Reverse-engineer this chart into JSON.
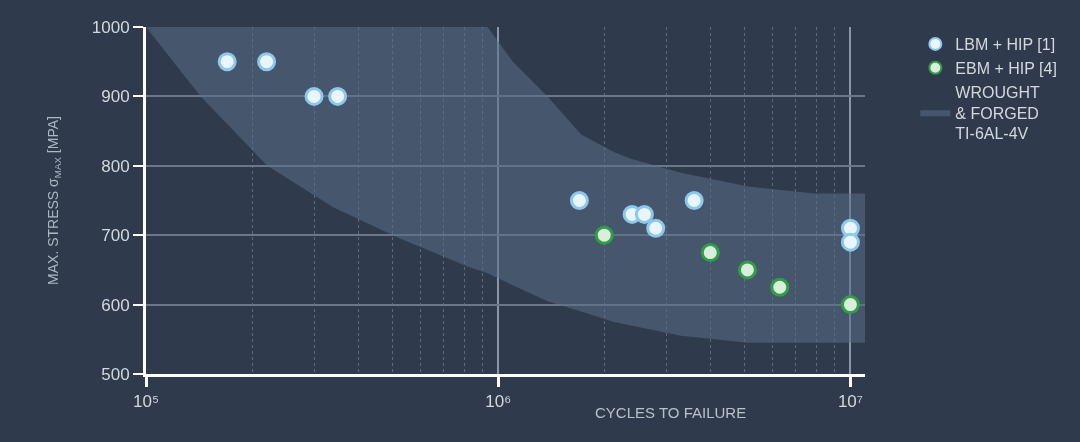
{
  "chart_data": {
    "type": "scatter",
    "xlabel": "CYCLES TO FAILURE",
    "ylabel": "MAX. STRESS σ$_{MAX}$ [MPA]",
    "log": "x",
    "grid": true,
    "legend": "top right",
    "marker": "circle",
    "xlim": [
      100000,
      11000000
    ],
    "ylim": [
      500,
      1000
    ],
    "xticks": [
      {
        "value": 100000,
        "label": "10⁵"
      },
      {
        "value": 200000,
        "label": null
      },
      {
        "value": 300000,
        "label": null
      },
      {
        "value": 400000,
        "label": null
      },
      {
        "value": 500000,
        "label": null
      },
      {
        "value": 600000,
        "label": null
      },
      {
        "value": 700000,
        "label": null
      },
      {
        "value": 800000,
        "label": null
      },
      {
        "value": 900000,
        "label": null
      },
      {
        "value": 1000000,
        "label": "10⁶"
      },
      {
        "value": 2000000,
        "label": null
      },
      {
        "value": 3000000,
        "label": null
      },
      {
        "value": 4000000,
        "label": null
      },
      {
        "value": 5000000,
        "label": null
      },
      {
        "value": 6000000,
        "label": null
      },
      {
        "value": 7000000,
        "label": null
      },
      {
        "value": 8000000,
        "label": null
      },
      {
        "value": 9000000,
        "label": null
      },
      {
        "value": 10000000,
        "label": "10⁷"
      }
    ],
    "yticks": [
      500,
      600,
      700,
      800,
      900,
      1000
    ],
    "series": [
      {
        "name": "LBM + HIP [1]",
        "color": "#8cc8ee",
        "x": [
          170000,
          220000,
          300000,
          350000,
          1700000,
          2400000,
          2600000,
          2800000,
          3600000,
          10000000,
          10000000
        ],
        "values": [
          950,
          950,
          900,
          900,
          750,
          730,
          730,
          710,
          750,
          710,
          690
        ]
      },
      {
        "name": "EBM + HIP [4]",
        "color": "#2f9e44",
        "x": [
          2000000,
          4000000,
          5100000,
          6300000,
          10000000
        ],
        "values": [
          700,
          675,
          650,
          625,
          600
        ]
      },
      {
        "name": "WROUGHT\n& FORGED\nTI-6AL-4V",
        "type": "area",
        "color": "#46576d",
        "x": [
          100000,
          143000,
          221000,
          341000,
          528000,
          818000,
          933000,
          1100000,
          1380000,
          1720000,
          2130000,
          2380000,
          3300000,
          5120000,
          7900000,
          11000000
        ],
        "values": [
          null,
          null,
          null,
          null,
          null,
          null,
          null,
          null,
          null,
          null,
          null,
          null,
          null,
          null,
          null,
          null
        ],
        "lower": [
          1000,
          900,
          800,
          740,
          695,
          655,
          645,
          628,
          605,
          590,
          575,
          570,
          555,
          545,
          545,
          545
        ],
        "upper": [
          1000,
          1000,
          1000,
          1000,
          1000,
          1000,
          1000,
          950,
          900,
          845,
          820,
          810,
          790,
          770,
          760,
          760
        ]
      }
    ]
  }
}
